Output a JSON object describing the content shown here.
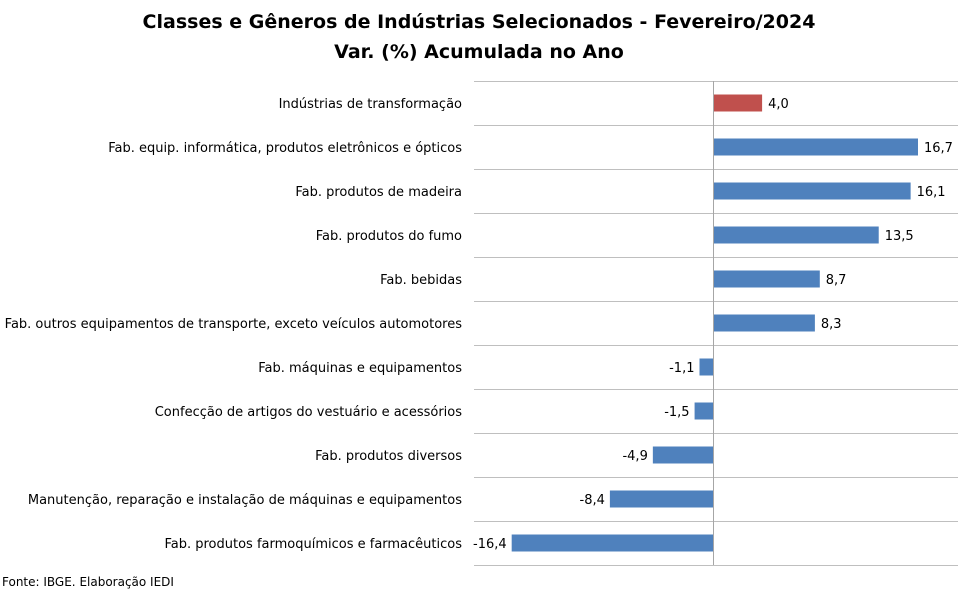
{
  "chart_data": {
    "type": "bar",
    "orientation": "horizontal",
    "title": "Classes e Gêneros de Indústrias Selecionados - Fevereiro/2024",
    "subtitle": "Var. (%) Acumulada no Ano",
    "categories": [
      "Indústrias de transformação",
      "Fab. equip. informática, produtos eletrônicos e ópticos",
      "Fab. produtos de madeira",
      "Fab. produtos do fumo",
      "Fab. bebidas",
      "Fab. outros equipamentos de transporte, exceto veículos automotores",
      "Fab. máquinas e equipamentos",
      "Confecção de artigos do vestuário e acessórios",
      "Fab. produtos diversos",
      "Manutenção, reparação e instalação de máquinas e equipamentos",
      "Fab. produtos farmoquímicos e farmacêuticos"
    ],
    "values": [
      4.0,
      16.7,
      16.1,
      13.5,
      8.7,
      8.3,
      -1.1,
      -1.5,
      -4.9,
      -8.4,
      -16.4
    ],
    "value_labels": [
      "4,0",
      "16,7",
      "16,1",
      "13,5",
      "8,7",
      "8,3",
      "-1,1",
      "-1,5",
      "-4,9",
      "-8,4",
      "-16,4"
    ],
    "highlight_index": 0,
    "colors": {
      "highlight": "#C0504D",
      "default": "#4F81BD",
      "grid": "#BFBFBF",
      "axis": "#A6A6A6"
    },
    "xlim": [
      -16.4,
      16.7
    ],
    "grid": true
  },
  "source": "Fonte: IBGE. Elaboração IEDI"
}
